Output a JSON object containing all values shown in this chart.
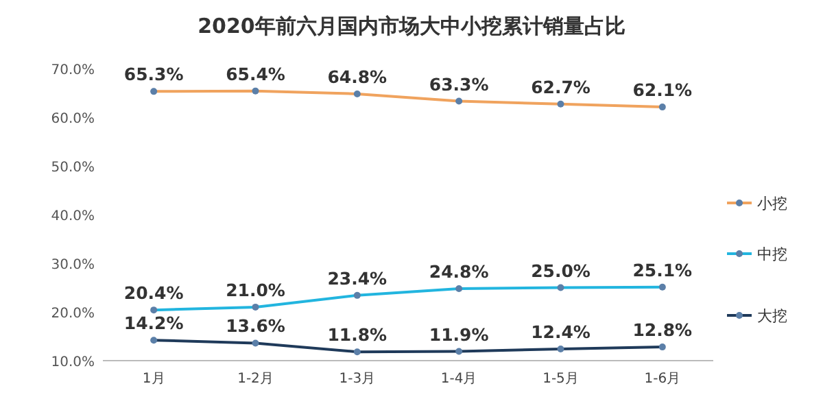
{
  "chart_data": {
    "type": "line",
    "title": "2020年前六月国内市场大中小挖累计销量占比",
    "categories": [
      "1月",
      "1-2月",
      "1-3月",
      "1-4月",
      "1-5月",
      "1-6月"
    ],
    "series": [
      {
        "name": "小挖",
        "color": "#f0a35e",
        "values": [
          65.3,
          65.4,
          64.8,
          63.3,
          62.7,
          62.1
        ],
        "value_labels": [
          "65.3%",
          "65.4%",
          "64.8%",
          "63.3%",
          "62.7%",
          "62.1%"
        ]
      },
      {
        "name": "中挖",
        "color": "#22b5df",
        "values": [
          20.4,
          21.0,
          23.4,
          24.8,
          25.0,
          25.1
        ],
        "value_labels": [
          "20.4%",
          "21.0%",
          "23.4%",
          "24.8%",
          "25.0%",
          "25.1%"
        ]
      },
      {
        "name": "大挖",
        "color": "#1f3a5a",
        "values": [
          14.2,
          13.6,
          11.8,
          11.9,
          12.4,
          12.8
        ],
        "value_labels": [
          "14.2%",
          "13.6%",
          "11.8%",
          "11.9%",
          "12.4%",
          "12.8%"
        ]
      }
    ],
    "ylim": [
      10,
      70
    ],
    "yticks": [
      {
        "value": 10,
        "label": "10.0%"
      },
      {
        "value": 20,
        "label": "20.0%"
      },
      {
        "value": 30,
        "label": "30.0%"
      },
      {
        "value": 40,
        "label": "40.0%"
      },
      {
        "value": 50,
        "label": "50.0%"
      },
      {
        "value": 60,
        "label": "60.0%"
      },
      {
        "value": 70,
        "label": "70.0%"
      }
    ],
    "grid": false,
    "legend": "right",
    "marker": "circle",
    "line_style": "solid"
  }
}
